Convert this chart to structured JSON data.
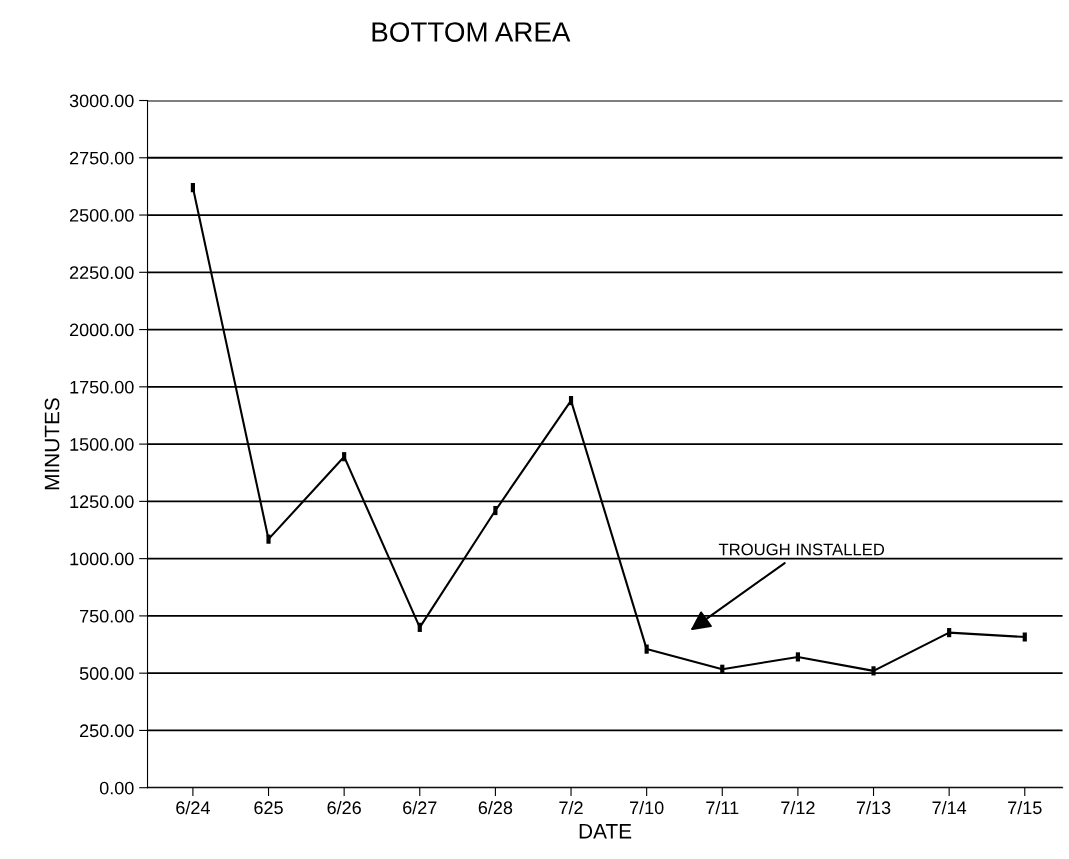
{
  "chart_data": {
    "type": "line",
    "title": "BOTTOM AREA",
    "xlabel": "DATE",
    "ylabel": "MINUTES",
    "categories": [
      "6/24",
      "625",
      "6/26",
      "6/27",
      "6/28",
      "7/2",
      "7/10",
      "7/11",
      "7/12",
      "7/13",
      "7/14",
      "7/15"
    ],
    "series": [
      {
        "color": "#000000",
        "values": [
          2620,
          1085,
          1445,
          700,
          1210,
          1690,
          605,
          517,
          571,
          510,
          677,
          658
        ],
        "errors": [
          20,
          20,
          20,
          20,
          20,
          20,
          20,
          20,
          20,
          20,
          20,
          20
        ]
      }
    ],
    "ylim": [
      0,
      3000
    ],
    "yticks": [
      {
        "value": 0,
        "label": "0.00"
      },
      {
        "value": 250,
        "label": "250.00"
      },
      {
        "value": 500,
        "label": "500.00"
      },
      {
        "value": 750,
        "label": "750.00"
      },
      {
        "value": 1000,
        "label": "1000.00"
      },
      {
        "value": 1250,
        "label": "1250.00"
      },
      {
        "value": 1500,
        "label": "1500.00"
      },
      {
        "value": 1750,
        "label": "1750.00"
      },
      {
        "value": 2000,
        "label": "2000.00"
      },
      {
        "value": 2250,
        "label": "2250.00"
      },
      {
        "value": 2500,
        "label": "2500.00"
      },
      {
        "value": 2750,
        "label": "2750.00"
      },
      {
        "value": 3000,
        "label": "3000.00"
      }
    ],
    "grid": "y",
    "line_style": "solid",
    "legend": false,
    "annotations": [
      "TROUGH INSTALLED"
    ]
  }
}
